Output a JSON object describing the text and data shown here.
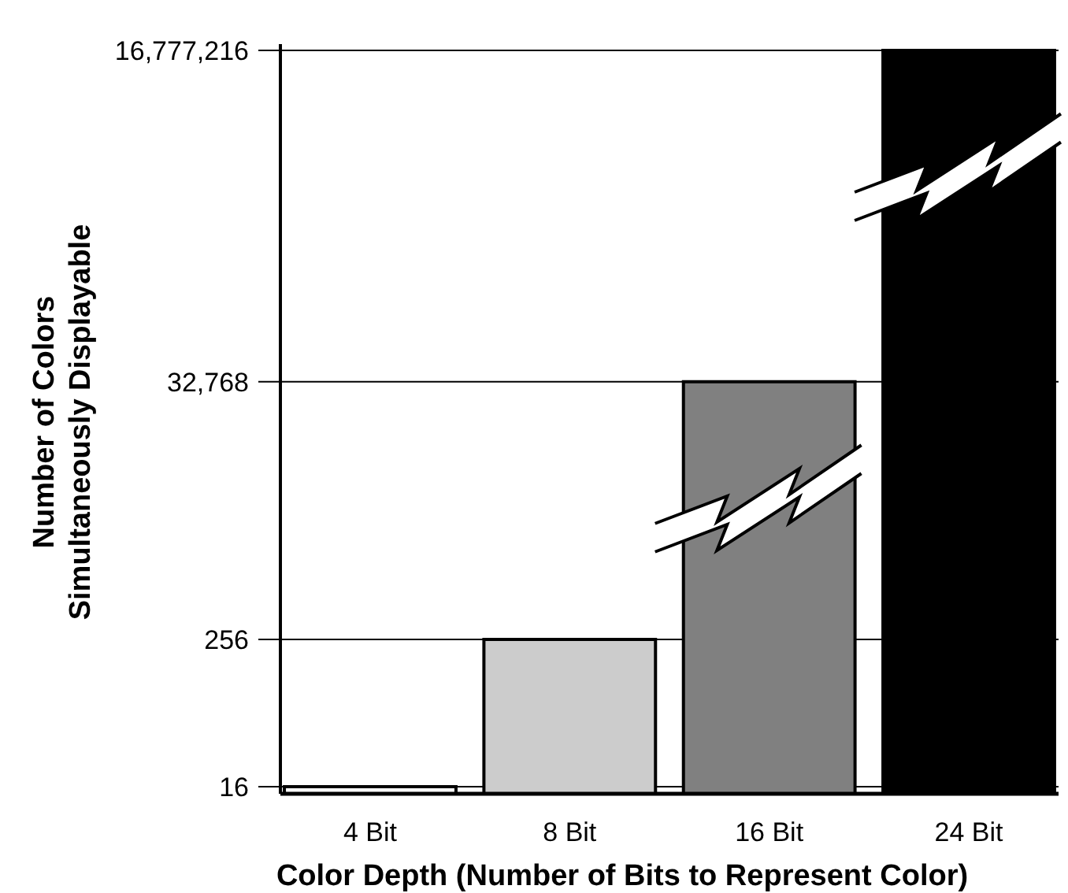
{
  "chart_data": {
    "type": "bar",
    "xlabel": "Color Depth (Number of Bits to Represent Color)",
    "ylabel": "Number of Colors\nSimultaneously Displayable",
    "categories": [
      "4 Bit",
      "8 Bit",
      "16 Bit",
      "24 Bit"
    ],
    "values": [
      16,
      256,
      32768,
      16777216
    ],
    "colors": [
      "#ffffff",
      "#cccccc",
      "#808080",
      "#000000"
    ],
    "log": true,
    "ylim": [
      14,
      16777216
    ],
    "yticks": [
      {
        "value": 16,
        "label": "16"
      },
      {
        "value": 256,
        "label": "256"
      },
      {
        "value": 32768,
        "label": "32,768"
      },
      {
        "value": 16777216,
        "label": "16,777,216"
      }
    ],
    "grid": "y"
  }
}
